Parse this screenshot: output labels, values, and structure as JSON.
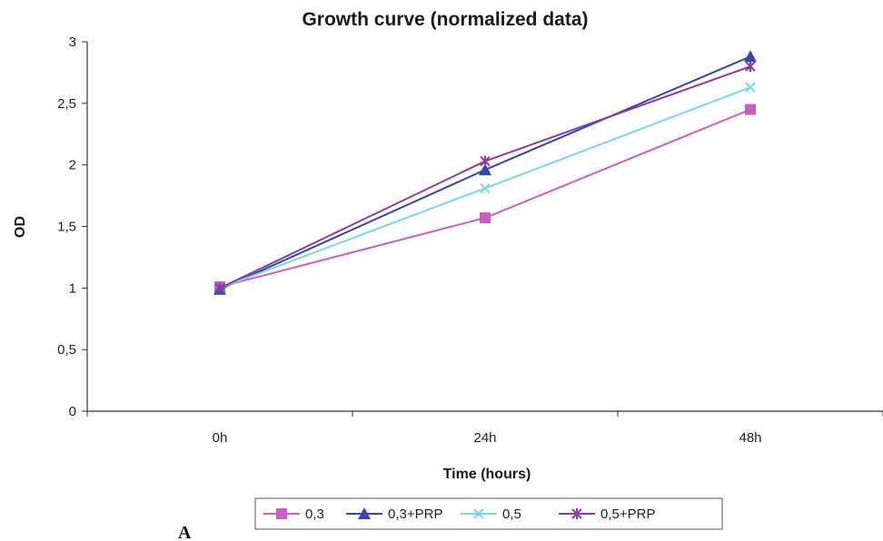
{
  "panel_label": "A",
  "chart_data": {
    "type": "line",
    "title": "Growth curve (normalized data)",
    "xlabel": "Time (hours)",
    "ylabel": "OD",
    "categories": [
      "0h",
      "24h",
      "48h"
    ],
    "ylim": [
      0,
      3
    ],
    "yticks": [
      0,
      0.5,
      1,
      1.5,
      2,
      2.5,
      3
    ],
    "ytick_labels": [
      "0",
      "0,5",
      "1",
      "1,5",
      "2",
      "2,5",
      "3"
    ],
    "grid": false,
    "legend_position": "bottom",
    "series": [
      {
        "name": "0,3",
        "marker": "square",
        "color": "#c95fbf",
        "values": [
          1.01,
          1.57,
          2.45
        ]
      },
      {
        "name": "0,3+PRP",
        "marker": "triangle",
        "color": "#3446a8",
        "values": [
          0.99,
          1.96,
          2.88
        ]
      },
      {
        "name": "0,5",
        "marker": "x",
        "color": "#7fd3e6",
        "values": [
          1.0,
          1.81,
          2.63
        ]
      },
      {
        "name": "0,5+PRP",
        "marker": "star",
        "color": "#8a3aa0",
        "values": [
          1.0,
          2.03,
          2.8
        ]
      }
    ]
  }
}
